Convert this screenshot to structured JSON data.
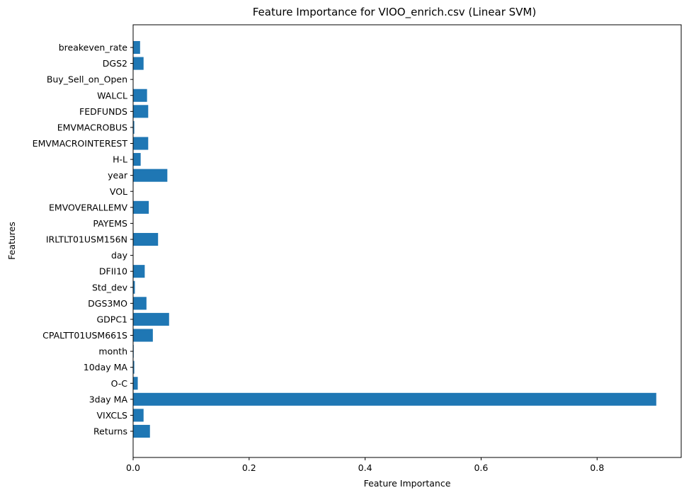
{
  "chart_data": {
    "type": "bar",
    "orientation": "horizontal",
    "title": "Feature Importance for VIOO_enrich.csv (Linear SVM)",
    "xlabel": "Feature Importance",
    "ylabel": "Features",
    "xlim": [
      0,
      0.945
    ],
    "xticks": [
      "0.0",
      "0.2",
      "0.4",
      "0.6",
      "0.8"
    ],
    "grid": false,
    "bar_color": "#1f77b4",
    "categories": [
      "Returns",
      "VIXCLS",
      "3day MA",
      "O-C",
      "10day MA",
      "month",
      "CPALTT01USM661S",
      "GDPC1",
      "DGS3MO",
      "Std_dev",
      "DFII10",
      "day",
      "IRLTLT01USM156N",
      "PAYEMS",
      "EMVOVERALLEMV",
      "VOL",
      "year",
      "H-L",
      "EMVMACROINTEREST",
      "EMVMACROBUS",
      "FEDFUNDS",
      "WALCL",
      "Buy_Sell_on_Open",
      "DGS2",
      "breakeven_rate"
    ],
    "values": [
      0.029,
      0.018,
      0.902,
      0.008,
      0.002,
      0.001,
      0.034,
      0.062,
      0.023,
      0.003,
      0.02,
      0.0,
      0.043,
      0.0,
      0.027,
      0.0,
      0.059,
      0.013,
      0.026,
      0.002,
      0.026,
      0.024,
      0.0,
      0.018,
      0.012
    ]
  }
}
